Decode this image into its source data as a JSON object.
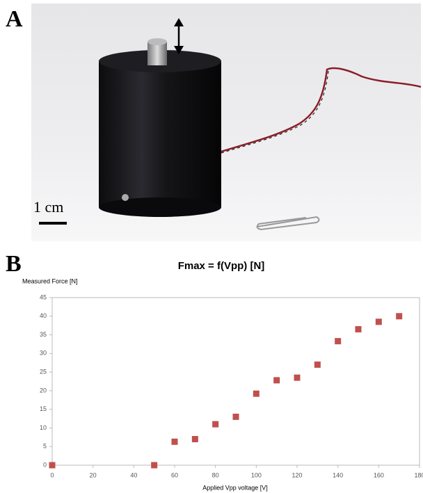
{
  "figure": {
    "panel_a": "A",
    "scale_label": "1 cm",
    "panel_b": "B"
  },
  "chart_data": {
    "type": "scatter",
    "title": "Fmax = f(Vpp) [N]",
    "y_label": "Measured Force [N]",
    "x_label": "Applied Vpp voltage [V]",
    "x": [
      0,
      50,
      60,
      70,
      80,
      90,
      100,
      110,
      120,
      130,
      140,
      150,
      160,
      170
    ],
    "values": [
      0,
      0,
      6.3,
      7,
      11,
      13,
      19.2,
      22.8,
      23.5,
      27,
      33.3,
      36.5,
      38.5,
      40
    ],
    "color": "#c0504d",
    "xlim": [
      0,
      180
    ],
    "xticks": [
      0,
      20,
      40,
      60,
      80,
      100,
      120,
      140,
      160,
      180
    ],
    "ylim": [
      0,
      45
    ],
    "yticks": [
      0,
      5,
      10,
      15,
      20,
      25,
      30,
      35,
      40,
      45
    ],
    "grid": false
  }
}
